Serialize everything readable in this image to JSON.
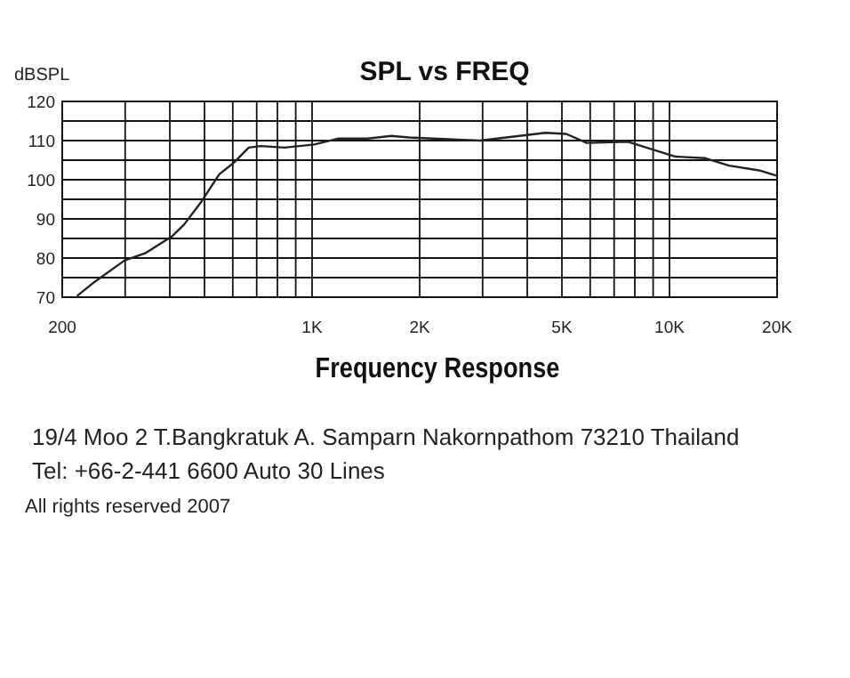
{
  "chart_data": {
    "type": "line",
    "title": "SPL vs FREQ",
    "xlabel": "Frequency Response",
    "ylabel": "dBSPL",
    "series": [
      {
        "color": "#222222",
        "x": [
          220,
          247,
          299,
          341,
          405,
          438,
          491,
          550,
          605,
          665,
          719,
          837,
          1014,
          1180,
          1430,
          1665,
          1868,
          2952,
          4500,
          5140,
          5870,
          7660,
          10400,
          12600,
          14680,
          17800,
          20000
        ],
        "values": [
          70.3,
          74,
          79.4,
          81.2,
          85.5,
          88.5,
          94.5,
          101.4,
          104.4,
          108.2,
          108.6,
          108.2,
          109,
          110.5,
          110.5,
          111.2,
          110.8,
          110,
          112,
          111.7,
          109.4,
          109.7,
          105.9,
          105.5,
          103.6,
          102.4,
          101
        ]
      }
    ],
    "log": "x",
    "xlim": [
      200,
      20000
    ],
    "xticks": [
      {
        "value": 200,
        "label": "200"
      },
      {
        "value": 300,
        "label": null
      },
      {
        "value": 400,
        "label": null
      },
      {
        "value": 500,
        "label": null
      },
      {
        "value": 600,
        "label": null
      },
      {
        "value": 700,
        "label": null
      },
      {
        "value": 800,
        "label": null
      },
      {
        "value": 900,
        "label": null
      },
      {
        "value": 1000,
        "label": "1K"
      },
      {
        "value": 2000,
        "label": "2K"
      },
      {
        "value": 3000,
        "label": null
      },
      {
        "value": 4000,
        "label": null
      },
      {
        "value": 5000,
        "label": "5K"
      },
      {
        "value": 6000,
        "label": null
      },
      {
        "value": 7000,
        "label": null
      },
      {
        "value": 8000,
        "label": null
      },
      {
        "value": 9000,
        "label": null
      },
      {
        "value": 10000,
        "label": "10K"
      },
      {
        "value": 20000,
        "label": "20K"
      }
    ],
    "ylim": [
      70,
      120
    ],
    "yticks": [
      70,
      {
        "value": 75,
        "label": null
      },
      80,
      {
        "value": 85,
        "label": null
      },
      90,
      {
        "value": 95,
        "label": null
      },
      100,
      {
        "value": 105,
        "label": null
      },
      110,
      {
        "value": 115,
        "label": null
      },
      120
    ],
    "grid": true,
    "marker": "none",
    "line_style": "solid",
    "annotations": [
      "19/4 Moo 2 T.Bangkratuk A. Samparn Nakornpathom 73210 Thailand",
      "Tel: +66-2-441 6600 Auto 30 Lines",
      "All rights reserved 2007"
    ]
  }
}
